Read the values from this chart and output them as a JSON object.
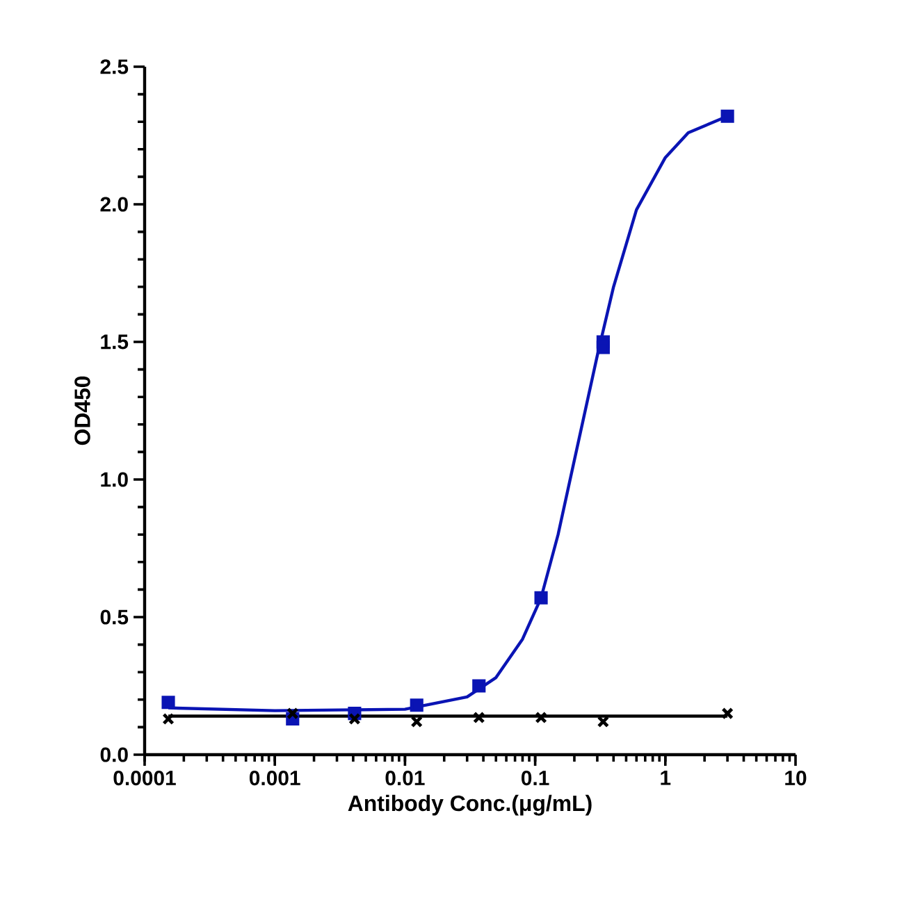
{
  "chart_data": {
    "type": "scatter",
    "xlabel": "Antibody Conc.(μg/mL)",
    "ylabel": "OD450",
    "log": "x",
    "xlim": [
      0.0001,
      10
    ],
    "ylim": [
      0,
      2.5
    ],
    "xticks": [
      0.0001,
      0.001,
      0.01,
      0.1,
      1,
      10
    ],
    "yticks": [
      {
        "value": 0,
        "label": "0.0"
      },
      {
        "value": 0.5,
        "label": "0.5"
      },
      {
        "value": 1,
        "label": "1.0"
      },
      {
        "value": 1.5,
        "label": "1.5"
      },
      {
        "value": 2,
        "label": "2.0"
      },
      {
        "value": 2.5,
        "label": "2.5"
      }
    ],
    "grid": false,
    "series": [
      {
        "marker": "square",
        "color": "#0a14b4",
        "x": [
          0.000152,
          0.00137,
          0.0041,
          0.0123,
          0.037,
          0.111,
          0.333,
          0.333,
          3
        ],
        "values": [
          0.19,
          0.13,
          0.15,
          0.18,
          0.25,
          0.57,
          1.5,
          1.48,
          2.32
        ]
      },
      {
        "type": "line",
        "marker": "none",
        "color": "#0a14b4",
        "x": [
          0.000152,
          0.001,
          0.01,
          0.03,
          0.05,
          0.08,
          0.111,
          0.15,
          0.2,
          0.3,
          0.4,
          0.6,
          1,
          1.5,
          3
        ],
        "values": [
          0.17,
          0.16,
          0.165,
          0.21,
          0.28,
          0.42,
          0.57,
          0.8,
          1.07,
          1.45,
          1.7,
          1.98,
          2.17,
          2.26,
          2.32
        ]
      },
      {
        "marker": "cross",
        "color": "#000000",
        "x": [
          0.000152,
          0.00137,
          0.0041,
          0.0123,
          0.037,
          0.111,
          0.333,
          3
        ],
        "values": [
          0.13,
          0.15,
          0.13,
          0.12,
          0.135,
          0.135,
          0.12,
          0.15
        ]
      },
      {
        "type": "line",
        "marker": "none",
        "color": "#000000",
        "x": [
          0.000152,
          3
        ],
        "values": [
          0.14,
          0.14
        ]
      }
    ]
  }
}
